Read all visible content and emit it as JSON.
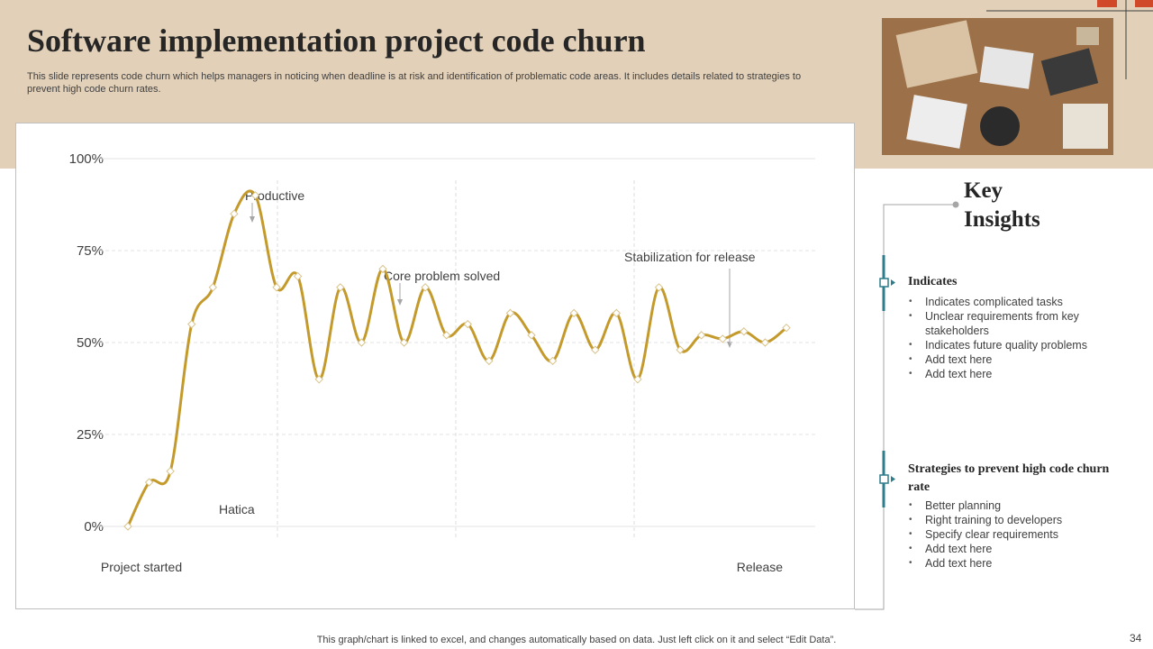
{
  "header": {
    "title": "Software implementation project code churn",
    "description": "This slide represents code churn which helps managers in noticing when deadline is at risk and identification of problematic code areas. It includes details related to strategies to prevent high code churn rates."
  },
  "chart_data": {
    "type": "line",
    "categories": [
      "Project started",
      null,
      null,
      null,
      null,
      null,
      null,
      null,
      null,
      null,
      null,
      null,
      null,
      null,
      null,
      null,
      null,
      null,
      null,
      null,
      null,
      null,
      null,
      null,
      null,
      null,
      null,
      null,
      null,
      null,
      "Release",
      null
    ],
    "series": [
      {
        "name": "Code churn",
        "color": "#c39a2b",
        "values": [
          0,
          12,
          15,
          55,
          65,
          85,
          90,
          65,
          68,
          40,
          65,
          50,
          70,
          50,
          65,
          52,
          55,
          45,
          58,
          52,
          45,
          58,
          48,
          58,
          40,
          65,
          48,
          52,
          51,
          53,
          50,
          54
        ]
      }
    ],
    "ylim": [
      0,
      100
    ],
    "yticks": [
      {
        "value": 0,
        "label": "0%"
      },
      {
        "value": 25,
        "label": "25%"
      },
      {
        "value": 50,
        "label": "50%"
      },
      {
        "value": 75,
        "label": "75%"
      },
      {
        "value": 100,
        "label": "100%"
      }
    ],
    "grid": true,
    "annotations": [
      "Productive",
      "Core problem solved",
      "Stabilization for release",
      "Hatica"
    ]
  },
  "insights": {
    "title": "Key Insights",
    "sections": [
      {
        "heading": "Indicates",
        "items": [
          "Indicates complicated tasks",
          "Unclear requirements  from key stakeholders",
          "Indicates future quality problems",
          "Add text here",
          "Add text here"
        ]
      },
      {
        "heading": "Strategies to prevent high code churn  rate",
        "items": [
          "Better planning",
          "Right training to developers",
          "Specify clear requirements",
          "Add text here",
          "Add text here"
        ]
      }
    ]
  },
  "footer": {
    "note": "This graph/chart is linked to excel,  and changes automatically based on data. Just left click on it and select “Edit Data”.",
    "page": "34"
  }
}
